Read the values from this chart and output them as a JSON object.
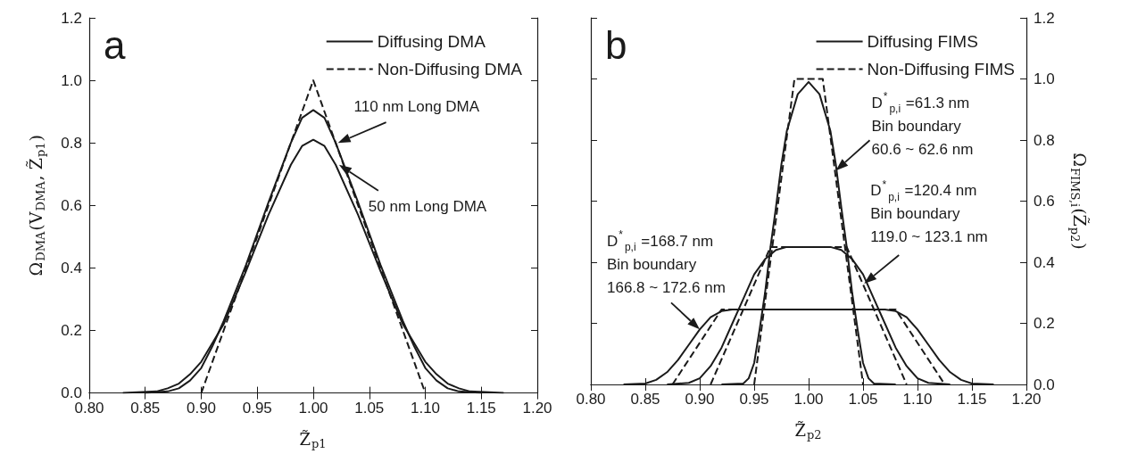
{
  "chart_data": [
    {
      "type": "line",
      "xlabel": "Z̃$_{p1}$",
      "ylabel": "Ω$_{DMA}$(V$_{DMA}$, Z̃$_{p1}$)",
      "xlim": [
        0.8,
        1.2
      ],
      "ylim": [
        0,
        1.2
      ],
      "xticks": [
        {
          "value": 0.8,
          "label": "0.80"
        },
        {
          "value": 0.85,
          "label": "0.85"
        },
        {
          "value": 0.9,
          "label": "0.90"
        },
        {
          "value": 0.95,
          "label": "0.95"
        },
        {
          "value": 1.0,
          "label": "1.00"
        },
        {
          "value": 1.05,
          "label": "1.05"
        },
        {
          "value": 1.1,
          "label": "1.10"
        },
        {
          "value": 1.15,
          "label": "1.15"
        },
        {
          "value": 1.2,
          "label": "1.20"
        }
      ],
      "yticks": [
        {
          "value": 0,
          "label": "0.0"
        },
        {
          "value": 0.2,
          "label": "0.2"
        },
        {
          "value": 0.4,
          "label": "0.4"
        },
        {
          "value": 0.6,
          "label": "0.6"
        },
        {
          "value": 0.8,
          "label": "0.8"
        },
        {
          "value": 1.0,
          "label": "1.0"
        },
        {
          "value": 1.2,
          "label": "1.2"
        }
      ],
      "grid": false,
      "legend": "top right",
      "marker": "none",
      "annotations": [
        "a",
        {
          "text": "110 nm Long DMA",
          "x": 1.022,
          "y": 0.8
        },
        {
          "text": "50 nm Long DMA",
          "x": 1.023,
          "y": 0.73
        }
      ],
      "series": [
        {
          "name": "Diffusing DMA",
          "color": "#1a1a1a",
          "line_style": "solid",
          "x": [
            0.85,
            0.87,
            0.88,
            0.89,
            0.9,
            0.91,
            0.92,
            0.94,
            0.96,
            0.98,
            0.99,
            1.0,
            1.01,
            1.02,
            1.04,
            1.06,
            1.08,
            1.09,
            1.1,
            1.11,
            1.12,
            1.13,
            1.15
          ],
          "values": [
            0,
            0.005,
            0.015,
            0.04,
            0.08,
            0.15,
            0.23,
            0.41,
            0.61,
            0.8,
            0.88,
            0.905,
            0.88,
            0.8,
            0.61,
            0.41,
            0.23,
            0.15,
            0.08,
            0.04,
            0.015,
            0.005,
            0
          ]
        },
        {
          "color": "#1a1a1a",
          "line_style": "solid",
          "x": [
            0.83,
            0.86,
            0.87,
            0.88,
            0.89,
            0.9,
            0.92,
            0.94,
            0.96,
            0.98,
            0.99,
            1.0,
            1.01,
            1.02,
            1.04,
            1.06,
            1.08,
            1.1,
            1.11,
            1.12,
            1.13,
            1.14,
            1.17
          ],
          "values": [
            0,
            0.005,
            0.015,
            0.03,
            0.06,
            0.1,
            0.22,
            0.39,
            0.57,
            0.73,
            0.79,
            0.81,
            0.79,
            0.73,
            0.57,
            0.39,
            0.22,
            0.1,
            0.06,
            0.03,
            0.015,
            0.005,
            0
          ]
        },
        {
          "name": "Non-Diffusing DMA",
          "color": "#1a1a1a",
          "line_style": "dashed",
          "x": [
            0.9,
            1.0,
            1.1
          ],
          "values": [
            0,
            1.0,
            0
          ]
        }
      ]
    },
    {
      "type": "line",
      "xlabel": "Z̃$_{p2}$",
      "ylabel": "Ω$_{FIMS,i}$(Z̃$_{p2}$)",
      "xlim": [
        0.8,
        1.2
      ],
      "ylim": [
        0,
        1.2
      ],
      "xticks": [
        {
          "value": 0.8,
          "label": "0.80"
        },
        {
          "value": 0.85,
          "label": "0.85"
        },
        {
          "value": 0.9,
          "label": "0.90"
        },
        {
          "value": 0.95,
          "label": "0.95"
        },
        {
          "value": 1.0,
          "label": "1.00"
        },
        {
          "value": 1.05,
          "label": "1.05"
        },
        {
          "value": 1.1,
          "label": "1.10"
        },
        {
          "value": 1.15,
          "label": "1.15"
        },
        {
          "value": 1.2,
          "label": "1.20"
        }
      ],
      "yticks": [
        {
          "value": 0,
          "label": "0.0"
        },
        {
          "value": 0.2,
          "label": "0.2"
        },
        {
          "value": 0.4,
          "label": "0.4"
        },
        {
          "value": 0.6,
          "label": "0.6"
        },
        {
          "value": 0.8,
          "label": "0.8"
        },
        {
          "value": 1.0,
          "label": "1.0"
        },
        {
          "value": 1.2,
          "label": "1.2"
        }
      ],
      "grid": false,
      "legend": "top right",
      "marker": "none",
      "annotations": [
        "b",
        {
          "text": "D$^{*}$$_{p,i}$ =61.3 nm\nBin boundary\n60.6 ~ 62.6 nm",
          "x": 1.025,
          "y": 0.7
        },
        {
          "text": "D$^{*}$$_{p,i}$ =120.4 nm\nBin boundary\n119.0 ~ 123.1 nm",
          "x": 1.051,
          "y": 0.33
        },
        {
          "text": "D$^{*}$$_{p,i}$ =168.7 nm\nBin boundary\n166.8 ~ 172.6 nm",
          "x": 0.9,
          "y": 0.18
        }
      ],
      "series": [
        {
          "name": "Diffusing FIMS",
          "color": "#1a1a1a",
          "line_style": "solid",
          "x": [
            0.92,
            0.94,
            0.945,
            0.95,
            0.955,
            0.96,
            0.965,
            0.97,
            0.975,
            0.98,
            0.99,
            1.0,
            1.01,
            1.02,
            1.025,
            1.03,
            1.035,
            1.04,
            1.045,
            1.05,
            1.055,
            1.06,
            1.08
          ],
          "values": [
            0,
            0.003,
            0.02,
            0.07,
            0.18,
            0.3,
            0.45,
            0.58,
            0.72,
            0.83,
            0.95,
            0.99,
            0.95,
            0.83,
            0.72,
            0.58,
            0.45,
            0.3,
            0.18,
            0.07,
            0.02,
            0.003,
            0
          ]
        },
        {
          "name": "Non-Diffusing FIMS",
          "color": "#1a1a1a",
          "line_style": "dashed",
          "x": [
            0.95,
            0.987,
            1.013,
            1.05
          ],
          "values": [
            0,
            1.0,
            1.0,
            0
          ]
        },
        {
          "color": "#1a1a1a",
          "line_style": "solid",
          "x": [
            0.87,
            0.89,
            0.9,
            0.91,
            0.92,
            0.93,
            0.94,
            0.95,
            0.96,
            0.97,
            0.98,
            1.0,
            1.02,
            1.03,
            1.04,
            1.05,
            1.06,
            1.07,
            1.08,
            1.09,
            1.1,
            1.11,
            1.13
          ],
          "values": [
            0,
            0.005,
            0.02,
            0.06,
            0.12,
            0.2,
            0.28,
            0.36,
            0.41,
            0.44,
            0.45,
            0.45,
            0.45,
            0.44,
            0.41,
            0.36,
            0.28,
            0.2,
            0.12,
            0.06,
            0.02,
            0.005,
            0
          ]
        },
        {
          "color": "#1a1a1a",
          "line_style": "dashed",
          "x": [
            0.91,
            0.965,
            1.035,
            1.09
          ],
          "values": [
            0,
            0.45,
            0.45,
            0
          ]
        },
        {
          "color": "#1a1a1a",
          "line_style": "solid",
          "x": [
            0.83,
            0.85,
            0.86,
            0.87,
            0.88,
            0.89,
            0.9,
            0.91,
            0.92,
            0.93,
            1.0,
            1.07,
            1.08,
            1.09,
            1.1,
            1.11,
            1.12,
            1.13,
            1.14,
            1.15,
            1.17
          ],
          "values": [
            0,
            0.003,
            0.015,
            0.04,
            0.08,
            0.13,
            0.18,
            0.22,
            0.24,
            0.245,
            0.245,
            0.245,
            0.24,
            0.22,
            0.18,
            0.13,
            0.08,
            0.04,
            0.015,
            0.003,
            0
          ]
        },
        {
          "color": "#1a1a1a",
          "line_style": "dashed",
          "x": [
            0.875,
            0.92,
            1.08,
            1.125
          ],
          "values": [
            0,
            0.245,
            0.245,
            0
          ]
        }
      ]
    }
  ]
}
